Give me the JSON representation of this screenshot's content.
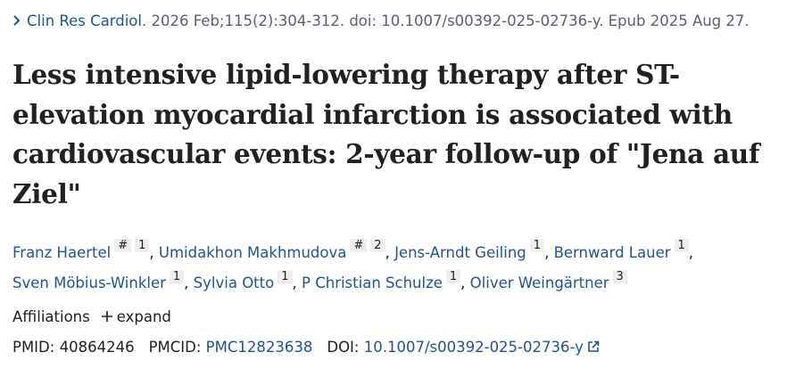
{
  "journal": {
    "name": "Clin Res Cardiol",
    "citation": ". 2026 Feb;115(2):304-312. doi: 10.1007/s00392-025-02736-y. Epub 2025 Aug 27."
  },
  "title": "Less intensive lipid-lowering therapy after ST-elevation myocardial infarction is associated with cardiovascular events: 2-year follow-up of \"Jena auf Ziel\"",
  "author_separator": ",",
  "authors": [
    {
      "name": "Franz Haertel",
      "marks": [
        "#"
      ],
      "affiliations": [
        "1"
      ]
    },
    {
      "name": "Umidakhon Makhmudova",
      "marks": [
        "#"
      ],
      "affiliations": [
        "2"
      ]
    },
    {
      "name": "Jens-Arndt Geiling",
      "marks": [],
      "affiliations": [
        "1"
      ]
    },
    {
      "name": "Bernward Lauer",
      "marks": [],
      "affiliations": [
        "1"
      ]
    },
    {
      "name": "Sven Möbius-Winkler",
      "marks": [],
      "affiliations": [
        "1"
      ]
    },
    {
      "name": "Sylvia Otto",
      "marks": [],
      "affiliations": [
        "1"
      ]
    },
    {
      "name": "P Christian Schulze",
      "marks": [],
      "affiliations": [
        "1"
      ]
    },
    {
      "name": "Oliver Weingärtner",
      "marks": [],
      "affiliations": [
        "3"
      ]
    }
  ],
  "affiliations": {
    "label": "Affiliations",
    "toggle": "expand"
  },
  "identifiers": [
    {
      "label": "PMID:",
      "value": "40864246"
    },
    {
      "label": "PMCID:",
      "value": "PMC12823638"
    },
    {
      "label": "DOI:",
      "value": "10.1007/s00392-025-02736-y"
    }
  ]
}
